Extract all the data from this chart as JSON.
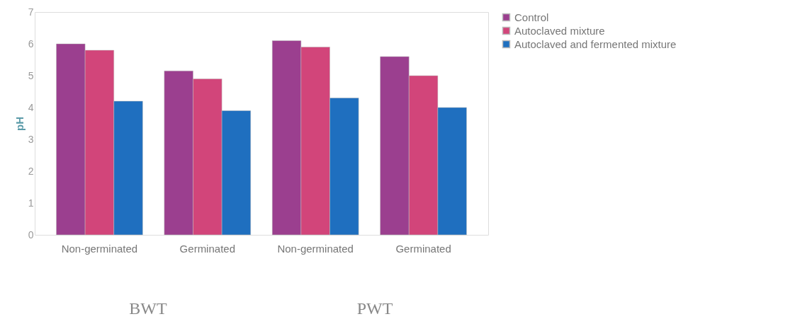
{
  "chart_data": {
    "type": "bar",
    "ylabel": "pH",
    "categories": [
      "Non-germinated",
      "Germinated",
      "Non-germinated",
      "Germinated"
    ],
    "series": [
      {
        "name": "Control",
        "color": "#9b3f8f",
        "values": [
          6.0,
          5.15,
          6.1,
          5.6
        ]
      },
      {
        "name": "Autoclaved mixture",
        "color": "#d2457a",
        "values": [
          5.8,
          4.9,
          5.9,
          5.0
        ]
      },
      {
        "name": "Autoclaved and fermented mixture",
        "color": "#1f6fbf",
        "values": [
          4.2,
          3.9,
          4.3,
          4.0
        ]
      }
    ],
    "ylim": [
      0,
      7
    ],
    "yticks": [
      0,
      1,
      2,
      3,
      4,
      5,
      6,
      7
    ],
    "grid": false,
    "legend": "right",
    "annotations": [
      "BWT",
      "PWT"
    ]
  }
}
